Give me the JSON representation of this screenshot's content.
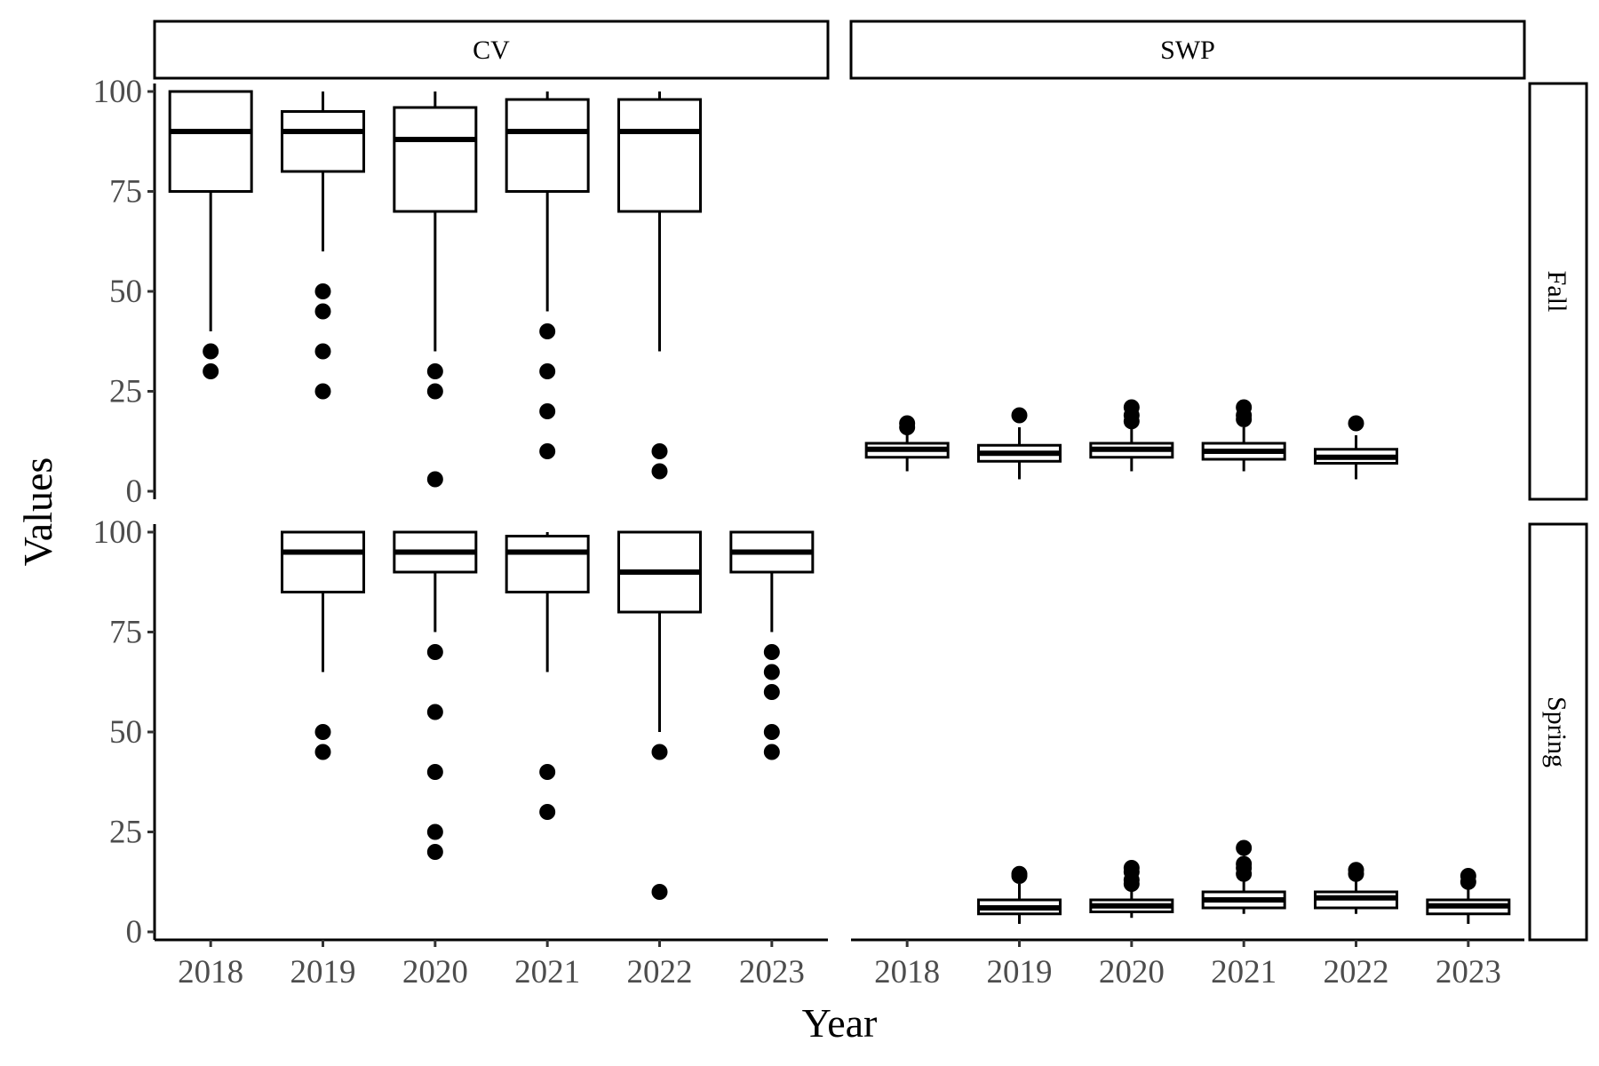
{
  "chart_data": {
    "type": "boxplot",
    "facet_columns": [
      "CV",
      "SWP"
    ],
    "facet_rows": [
      "Fall",
      "Spring"
    ],
    "xlabel": "Year",
    "ylabel": "Values",
    "categories": [
      "2018",
      "2019",
      "2020",
      "2021",
      "2022",
      "2023"
    ],
    "yticks": [
      0,
      25,
      50,
      75,
      100
    ],
    "ylim": [
      -2,
      102
    ],
    "panels": [
      {
        "column": "CV",
        "row": "Fall",
        "boxes": [
          {
            "x": "2018",
            "low": 40,
            "q1": 75,
            "median": 90,
            "q3": 100,
            "high": 100,
            "outliers": [
              35,
              30
            ]
          },
          {
            "x": "2019",
            "low": 60,
            "q1": 80,
            "median": 90,
            "q3": 95,
            "high": 100,
            "outliers": [
              50,
              45,
              35,
              25
            ]
          },
          {
            "x": "2020",
            "low": 35,
            "q1": 70,
            "median": 88,
            "q3": 96,
            "high": 100,
            "outliers": [
              30,
              25,
              3
            ]
          },
          {
            "x": "2021",
            "low": 45,
            "q1": 75,
            "median": 90,
            "q3": 98,
            "high": 100,
            "outliers": [
              40,
              30,
              20,
              10
            ]
          },
          {
            "x": "2022",
            "low": 35,
            "q1": 70,
            "median": 90,
            "q3": 98,
            "high": 100,
            "outliers": [
              10,
              5
            ]
          }
        ]
      },
      {
        "column": "CV",
        "row": "Spring",
        "boxes": [
          {
            "x": "2019",
            "low": 65,
            "q1": 85,
            "median": 95,
            "q3": 100,
            "high": 100,
            "outliers": [
              50,
              45
            ]
          },
          {
            "x": "2020",
            "low": 75,
            "q1": 90,
            "median": 95,
            "q3": 100,
            "high": 100,
            "outliers": [
              70,
              55,
              40,
              25,
              20
            ]
          },
          {
            "x": "2021",
            "low": 65,
            "q1": 85,
            "median": 95,
            "q3": 99,
            "high": 100,
            "outliers": [
              40,
              30
            ]
          },
          {
            "x": "2022",
            "low": 50,
            "q1": 80,
            "median": 90,
            "q3": 100,
            "high": 100,
            "outliers": [
              45,
              10
            ]
          },
          {
            "x": "2023",
            "low": 75,
            "q1": 90,
            "median": 95,
            "q3": 100,
            "high": 100,
            "outliers": [
              70,
              65,
              60,
              50,
              45
            ]
          }
        ]
      },
      {
        "column": "SWP",
        "row": "Fall",
        "boxes": [
          {
            "x": "2018",
            "low": 5,
            "q1": 8.5,
            "median": 10.5,
            "q3": 12,
            "high": 15,
            "outliers": [
              17,
              16
            ]
          },
          {
            "x": "2019",
            "low": 3,
            "q1": 7.5,
            "median": 9.5,
            "q3": 11.5,
            "high": 16,
            "outliers": [
              19
            ]
          },
          {
            "x": "2020",
            "low": 5,
            "q1": 8.5,
            "median": 10.5,
            "q3": 12,
            "high": 16,
            "outliers": [
              21,
              19,
              17.5
            ]
          },
          {
            "x": "2021",
            "low": 5,
            "q1": 8,
            "median": 10,
            "q3": 12,
            "high": 16,
            "outliers": [
              21,
              19,
              18
            ]
          },
          {
            "x": "2022",
            "low": 3,
            "q1": 7,
            "median": 8.5,
            "q3": 10.5,
            "high": 14,
            "outliers": [
              17
            ]
          }
        ]
      },
      {
        "column": "SWP",
        "row": "Spring",
        "boxes": [
          {
            "x": "2019",
            "low": 2,
            "q1": 4.5,
            "median": 6,
            "q3": 8,
            "high": 12,
            "outliers": [
              14.5,
              14
            ]
          },
          {
            "x": "2020",
            "low": 3.5,
            "q1": 5,
            "median": 6.5,
            "q3": 8,
            "high": 11,
            "outliers": [
              16,
              15,
              13,
              12
            ]
          },
          {
            "x": "2021",
            "low": 4.5,
            "q1": 6,
            "median": 8,
            "q3": 10,
            "high": 13,
            "outliers": [
              21,
              17,
              16,
              14.5
            ]
          },
          {
            "x": "2022",
            "low": 4.5,
            "q1": 6,
            "median": 8.5,
            "q3": 10,
            "high": 13,
            "outliers": [
              15.5,
              14.5
            ]
          },
          {
            "x": "2023",
            "low": 2,
            "q1": 4.5,
            "median": 6.5,
            "q3": 8,
            "high": 11.5,
            "outliers": [
              14,
              12.5
            ]
          }
        ]
      }
    ]
  }
}
